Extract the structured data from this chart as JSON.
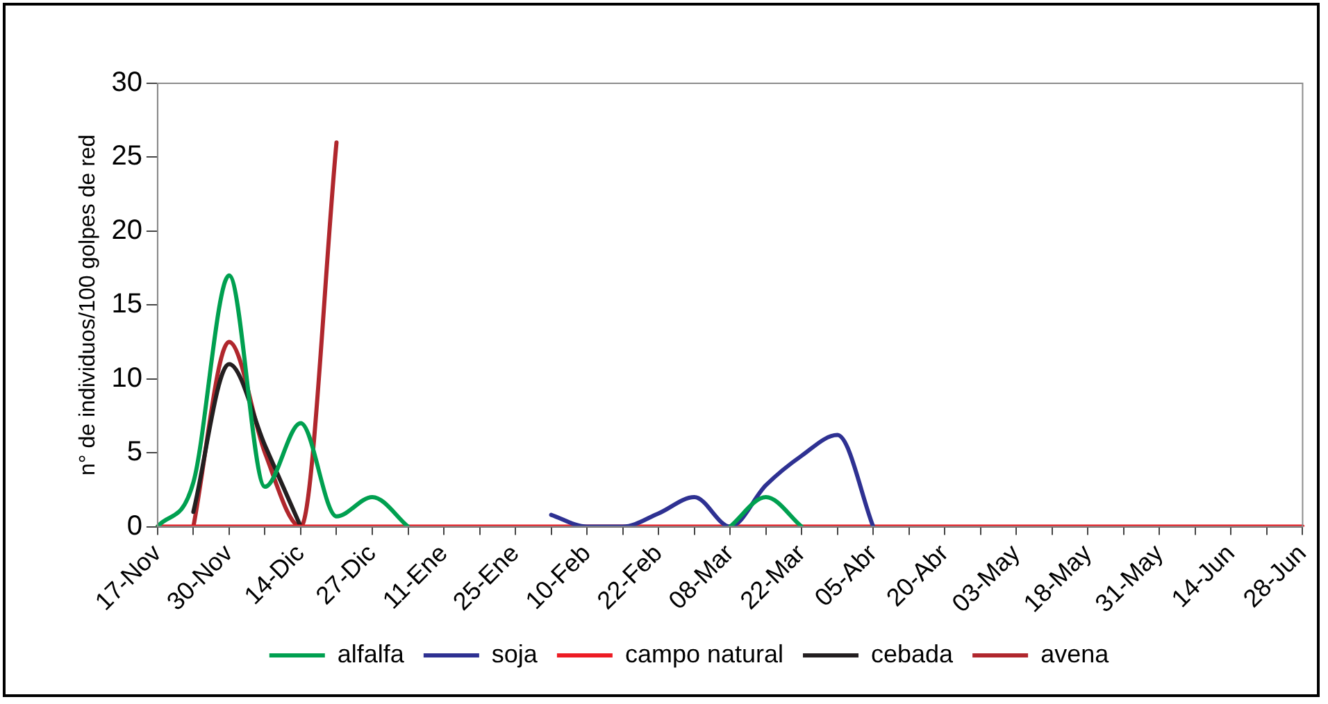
{
  "chart_data": {
    "type": "line",
    "ylabel": "n° de individuos/100 golpes de red",
    "categories": [
      "17-Nov",
      null,
      "30-Nov",
      null,
      "14-Dic",
      null,
      "27-Dic",
      null,
      "11-Ene",
      null,
      "25-Ene",
      null,
      "10-Feb",
      null,
      "22-Feb",
      null,
      "08-Mar",
      null,
      "22-Mar",
      null,
      "05-Abr",
      null,
      "20-Abr",
      null,
      "03-May",
      null,
      "18-May",
      null,
      "31-May",
      null,
      "14-Jun",
      null,
      "28-Jun"
    ],
    "series": [
      {
        "name": "alfalfa",
        "color": "#00a050",
        "values": [
          0,
          3,
          17,
          2.7,
          7,
          0.7,
          2,
          0,
          null,
          null,
          null,
          null,
          null,
          null,
          null,
          null,
          0,
          2,
          0,
          null,
          null,
          null,
          null,
          null,
          null,
          null,
          null,
          null,
          null,
          null,
          null,
          null,
          null
        ]
      },
      {
        "name": "soja",
        "color": "#2e3192",
        "values": [
          null,
          null,
          null,
          null,
          null,
          null,
          null,
          null,
          null,
          null,
          null,
          0.8,
          0,
          0,
          0.9,
          2,
          0,
          2.8,
          4.8,
          6.2,
          0,
          null,
          null,
          null,
          null,
          null,
          null,
          null,
          null,
          null,
          null,
          null,
          null
        ]
      },
      {
        "name": "campo natural",
        "color": "#ed1c24",
        "values": [
          0,
          0,
          0,
          0,
          0,
          0,
          0,
          0,
          0,
          0,
          0,
          0,
          0,
          0,
          0,
          0,
          0,
          0,
          0,
          0,
          0,
          0,
          0,
          0,
          0,
          0,
          0,
          0,
          0,
          0,
          0,
          0,
          0
        ]
      },
      {
        "name": "cebada",
        "color": "#231f20",
        "values": [
          null,
          1,
          11,
          5.5,
          0,
          null,
          null,
          null,
          null,
          null,
          null,
          null,
          null,
          null,
          null,
          null,
          null,
          null,
          null,
          null,
          null,
          null,
          null,
          null,
          null,
          null,
          null,
          null,
          null,
          null,
          null,
          null,
          null
        ]
      },
      {
        "name": "avena",
        "color": "#b0272d",
        "values": [
          null,
          0,
          12.5,
          5,
          0,
          26,
          null,
          null,
          null,
          null,
          null,
          null,
          null,
          null,
          null,
          null,
          null,
          null,
          null,
          null,
          null,
          null,
          null,
          null,
          null,
          null,
          null,
          null,
          null,
          null,
          null,
          null,
          null
        ]
      }
    ],
    "ylim": [
      0,
      30
    ],
    "yticks": [
      0,
      5,
      10,
      15,
      20,
      25,
      30
    ],
    "grid": false,
    "legend": "bottom",
    "marker": "none",
    "line_style": "solid"
  }
}
